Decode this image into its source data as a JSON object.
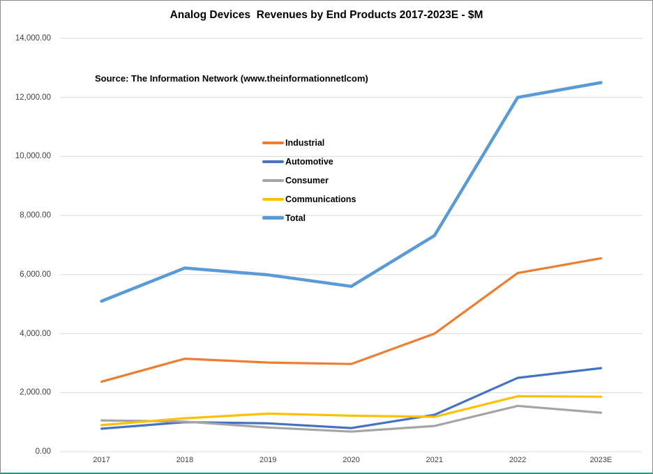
{
  "page": {
    "background": "#ffffff",
    "frame_border_color": "#8c8c8c",
    "frame_bottom_border_color": "#16a17c"
  },
  "chart_data": {
    "type": "line",
    "title": "Analog Devices  Revenues by End Products 2017-2023E - $M",
    "source_note": "Source: The Information Network (www.theinformationnetlcom)",
    "categories": [
      "2017",
      "2018",
      "2019",
      "2020",
      "2021",
      "2022",
      "2023E"
    ],
    "series": [
      {
        "name": "Industrial",
        "color": "#ED7D31",
        "width": 3.2,
        "values": [
          2370,
          3150,
          3020,
          2970,
          4000,
          6050,
          6550
        ]
      },
      {
        "name": "Automotive",
        "color": "#4472C4",
        "width": 3.2,
        "values": [
          780,
          1000,
          960,
          800,
          1250,
          2500,
          2830
        ]
      },
      {
        "name": "Consumer",
        "color": "#A5A5A5",
        "width": 3.2,
        "values": [
          1060,
          1020,
          820,
          680,
          870,
          1550,
          1320
        ]
      },
      {
        "name": "Communications",
        "color": "#FFC000",
        "width": 3.2,
        "values": [
          900,
          1130,
          1290,
          1220,
          1180,
          1880,
          1860
        ]
      },
      {
        "name": "Total",
        "color": "#5B9BD5",
        "width": 4.5,
        "values": [
          5100,
          6220,
          5990,
          5600,
          7320,
          12000,
          12500
        ]
      }
    ],
    "ylim": [
      0,
      14000
    ],
    "ytick_interval": 2000,
    "ytick_values": [
      0,
      2000,
      4000,
      6000,
      8000,
      10000,
      12000,
      14000
    ],
    "ytick_labels": [
      "0.00",
      "2,000.00",
      "4,000.00",
      "6,000.00",
      "8,000.00",
      "10,000.00",
      "12,000.00",
      "14,000.00"
    ],
    "grid": "horizontal",
    "gridline_color": "#D9D9D9",
    "axis_text_color": "#404040",
    "legend_position": "inside-upper-left-center",
    "xlabel": "",
    "ylabel": ""
  }
}
